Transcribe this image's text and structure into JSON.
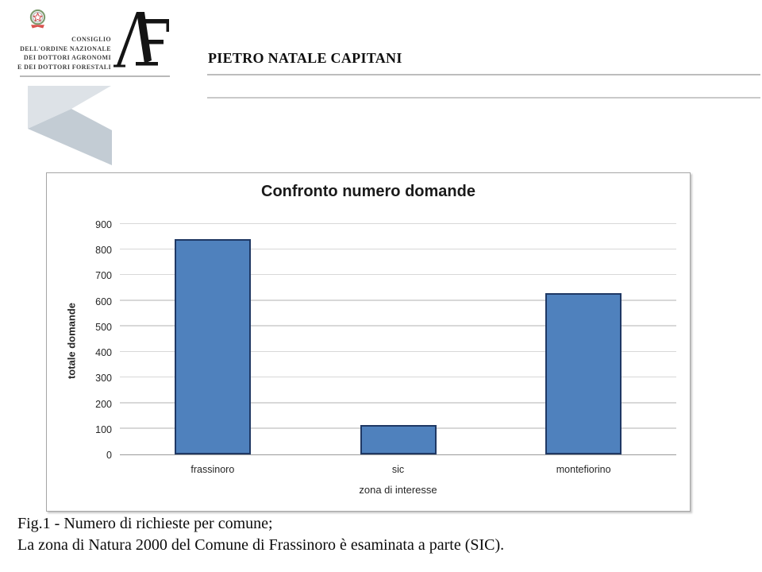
{
  "branding": {
    "org_lines": [
      "CONSIGLIO",
      "DELL'ORDINE NAZIONALE",
      "DEI DOTTORI AGRONOMI",
      "E DEI DOTTORI FORESTALI"
    ]
  },
  "header": {
    "title": "PIETRO NATALE CAPITANI"
  },
  "chart_data": {
    "type": "bar",
    "title": "Confronto numero domande",
    "categories": [
      "frassinoro",
      "sic",
      "montefiorino"
    ],
    "values": [
      840,
      115,
      630
    ],
    "xlabel": "zona di interesse",
    "ylabel": "totale domande",
    "ylim": [
      0,
      900
    ],
    "ytick_step": 100,
    "grid": true,
    "legend": false,
    "bar_fill": "#4f81bd",
    "bar_border": "#1f3864"
  },
  "caption": {
    "line1": "Fig.1 - Numero di richieste per comune;",
    "line2": "La zona di Natura 2000 del Comune di Frassinoro è esaminata a parte (SIC)."
  },
  "colors": {
    "accent_bar": "#4f81bd",
    "bar_outline": "#1f3864",
    "rule_gray": "#bdbdbd",
    "arrow_light": "#dde2e7",
    "arrow_dark": "#c3ccd4"
  }
}
